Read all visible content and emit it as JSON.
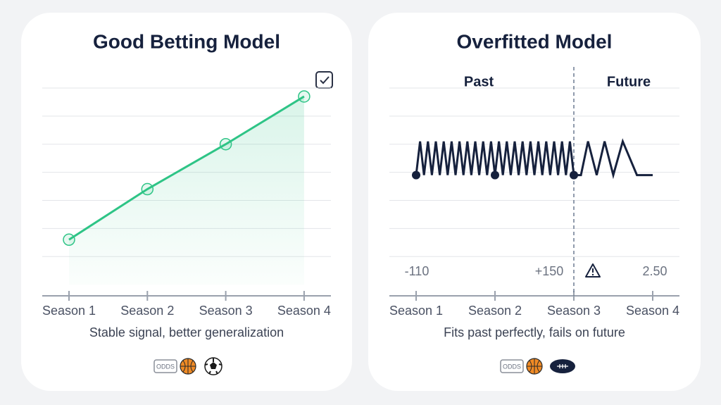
{
  "chart_data": [
    {
      "type": "line",
      "title": "Good Betting Model",
      "caption": "Stable signal, better generalization",
      "badge_label": "ODDS",
      "categories": [
        "Season 1",
        "Season 2",
        "Season 3",
        "Season 4"
      ],
      "series": [
        {
          "color": "#2ec486",
          "values": [
            1.6,
            3.4,
            5.0,
            6.7
          ]
        }
      ],
      "ylim": [
        -0.4,
        7
      ],
      "yticks": [
        1,
        2,
        3,
        4,
        5,
        6,
        7
      ],
      "grid": true
    },
    {
      "type": "zigzag",
      "title": "Overfitted Model",
      "caption": "Fits past perfectly, fails on future",
      "badge_label": "ODDS",
      "categories": [
        "Season 1",
        "Season 2",
        "Season 3",
        "Season 4"
      ],
      "annotations": [
        "Past",
        "Future",
        "-110",
        "+150",
        "2.50"
      ],
      "divider_x": 3,
      "series": [
        {
          "color": "#16213d",
          "marker_x": [
            1,
            2,
            3
          ],
          "x": [
            1,
            1.05,
            1.1,
            1.15,
            1.2,
            1.25,
            1.3,
            1.35,
            1.4,
            1.45,
            1.5,
            1.55,
            1.6,
            1.65,
            1.7,
            1.75,
            1.8,
            1.85,
            1.9,
            1.95,
            2,
            2.05,
            2.1,
            2.15,
            2.2,
            2.25,
            2.3,
            2.35,
            2.4,
            2.45,
            2.5,
            2.55,
            2.6,
            2.65,
            2.7,
            2.75,
            2.8,
            2.85,
            2.9,
            2.95,
            3,
            3.09,
            3.18,
            3.29,
            3.39,
            3.5,
            3.62,
            3.8,
            4
          ],
          "values": [
            3.9,
            5.1,
            3.9,
            5.1,
            3.9,
            5.1,
            3.9,
            5.1,
            3.9,
            5.1,
            3.9,
            5.1,
            3.9,
            5.1,
            3.9,
            5.1,
            3.9,
            5.1,
            3.9,
            5.1,
            3.9,
            5.1,
            3.9,
            5.1,
            3.9,
            5.1,
            3.9,
            5.1,
            3.9,
            5.1,
            3.9,
            5.1,
            3.9,
            5.1,
            3.9,
            5.1,
            3.9,
            5.1,
            3.9,
            5.1,
            3.9,
            3.9,
            5.1,
            3.9,
            5.1,
            3.9,
            5.1,
            3.9,
            3.9
          ]
        }
      ],
      "xlim": [
        1,
        4
      ],
      "ylim": [
        -0.4,
        7
      ],
      "yticks": [
        1,
        2,
        3,
        4,
        5,
        6,
        7
      ],
      "grid": true
    }
  ]
}
